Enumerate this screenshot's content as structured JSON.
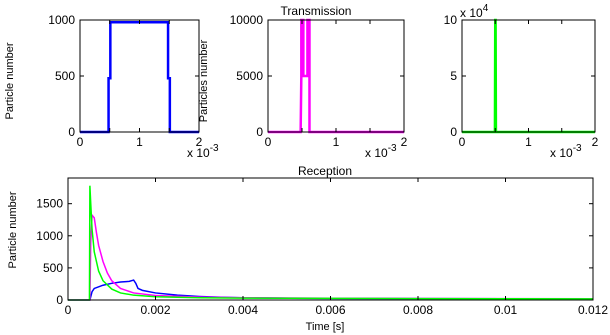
{
  "chart_data": [
    {
      "type": "line",
      "title": "",
      "ylabel": "Particle number",
      "xlabel": "",
      "x_exponent": "x 10",
      "x_exponent_power": "-3",
      "xlim": [
        0,
        0.002
      ],
      "ylim": [
        0,
        1000
      ],
      "xticks": [
        0,
        0.0005,
        0.001,
        0.0015,
        0.002
      ],
      "xtick_labels": [
        "0",
        "",
        "1",
        "",
        "2"
      ],
      "yticks": [
        0,
        500,
        1000
      ],
      "ytick_labels": [
        "0",
        "500",
        "1000"
      ],
      "grid": false,
      "series": [
        {
          "color": "#0000ff",
          "x": [
            0,
            0.00048,
            0.00048,
            0.00051,
            0.00051,
            0.00148,
            0.00148,
            0.00151,
            0.00151,
            0.002
          ],
          "y": [
            0,
            0,
            480,
            480,
            980,
            980,
            480,
            480,
            0,
            0
          ]
        }
      ]
    },
    {
      "type": "line",
      "title": "Transmission",
      "ylabel": "Particles number",
      "xlabel": "",
      "x_exponent": "x 10",
      "x_exponent_power": "-3",
      "xlim": [
        0,
        0.002
      ],
      "ylim": [
        0,
        10000
      ],
      "xticks": [
        0,
        0.0005,
        0.001,
        0.0015,
        0.002
      ],
      "xtick_labels": [
        "0",
        "",
        "1",
        "",
        "2"
      ],
      "yticks": [
        0,
        5000,
        10000
      ],
      "ytick_labels": [
        "0",
        "5000",
        "10000"
      ],
      "grid": false,
      "series": [
        {
          "color": "#ff00ff",
          "x": [
            0,
            0.00048,
            0.00049,
            0.00049,
            0.00052,
            0.00052,
            0.00058,
            0.00058,
            0.00061,
            0.00061,
            0.002
          ],
          "y": [
            0,
            0,
            5000,
            10000,
            10000,
            5000,
            5000,
            10000,
            10000,
            0,
            0
          ]
        }
      ]
    },
    {
      "type": "line",
      "title": "",
      "ylabel": "",
      "xlabel": "",
      "y_exponent": "x 10",
      "y_exponent_power": "4",
      "x_exponent": "x 10",
      "x_exponent_power": "-3",
      "xlim": [
        0,
        0.002
      ],
      "ylim": [
        0,
        100000
      ],
      "xticks": [
        0,
        0.0005,
        0.001,
        0.0015,
        0.002
      ],
      "xtick_labels": [
        "0",
        "",
        "1",
        "",
        "2"
      ],
      "yticks": [
        0,
        50000,
        100000
      ],
      "ytick_labels": [
        "0",
        "5",
        "10"
      ],
      "grid": false,
      "series": [
        {
          "color": "#00ff00",
          "x": [
            0,
            0.000495,
            0.0005,
            0.000505,
            0.00051,
            0.002
          ],
          "y": [
            0,
            0,
            100000,
            100000,
            0,
            0
          ]
        }
      ]
    },
    {
      "type": "line",
      "title": "Reception",
      "ylabel": "Particle number",
      "xlabel": "Time [s]",
      "xlim": [
        0,
        0.012
      ],
      "ylim": [
        0,
        1900
      ],
      "xticks": [
        0,
        0.002,
        0.004,
        0.006,
        0.008,
        0.01,
        0.012
      ],
      "xtick_labels": [
        "0",
        "0.002",
        "0.004",
        "0.006",
        "0.008",
        "0.01",
        "0.012"
      ],
      "yticks": [
        0,
        500,
        1000,
        1500
      ],
      "ytick_labels": [
        "0",
        "500",
        "1000",
        "1500"
      ],
      "grid": false,
      "series": [
        {
          "color": "#0000ff",
          "x": [
            0,
            0.0005,
            0.00055,
            0.0006,
            0.0008,
            0.001,
            0.0012,
            0.0014,
            0.0015,
            0.00155,
            0.0016,
            0.0017,
            0.002,
            0.0025,
            0.003,
            0.0035,
            0.004,
            0.005,
            0.006,
            0.008,
            0.01,
            0.012
          ],
          "y": [
            0,
            0,
            130,
            180,
            230,
            260,
            280,
            290,
            310,
            260,
            180,
            150,
            110,
            75,
            55,
            42,
            35,
            28,
            25,
            22,
            20,
            18
          ]
        },
        {
          "color": "#ff00ff",
          "x": [
            0,
            0.0005,
            0.00052,
            0.00055,
            0.0006,
            0.00065,
            0.0007,
            0.0008,
            0.0009,
            0.001,
            0.0012,
            0.0015,
            0.002,
            0.003,
            0.004,
            0.006,
            0.008,
            0.01,
            0.012
          ],
          "y": [
            0,
            0,
            900,
            1320,
            1280,
            1050,
            850,
            600,
            420,
            300,
            180,
            110,
            70,
            45,
            35,
            28,
            24,
            22,
            20
          ]
        },
        {
          "color": "#00ff00",
          "x": [
            0,
            0.00049,
            0.0005,
            0.00052,
            0.00055,
            0.0006,
            0.0007,
            0.0008,
            0.001,
            0.0012,
            0.0015,
            0.002,
            0.003,
            0.004,
            0.006,
            0.008,
            0.01,
            0.012
          ],
          "y": [
            0,
            0,
            1780,
            1500,
            1100,
            750,
            450,
            300,
            170,
            110,
            75,
            50,
            35,
            30,
            25,
            22,
            20,
            18
          ]
        }
      ]
    }
  ]
}
